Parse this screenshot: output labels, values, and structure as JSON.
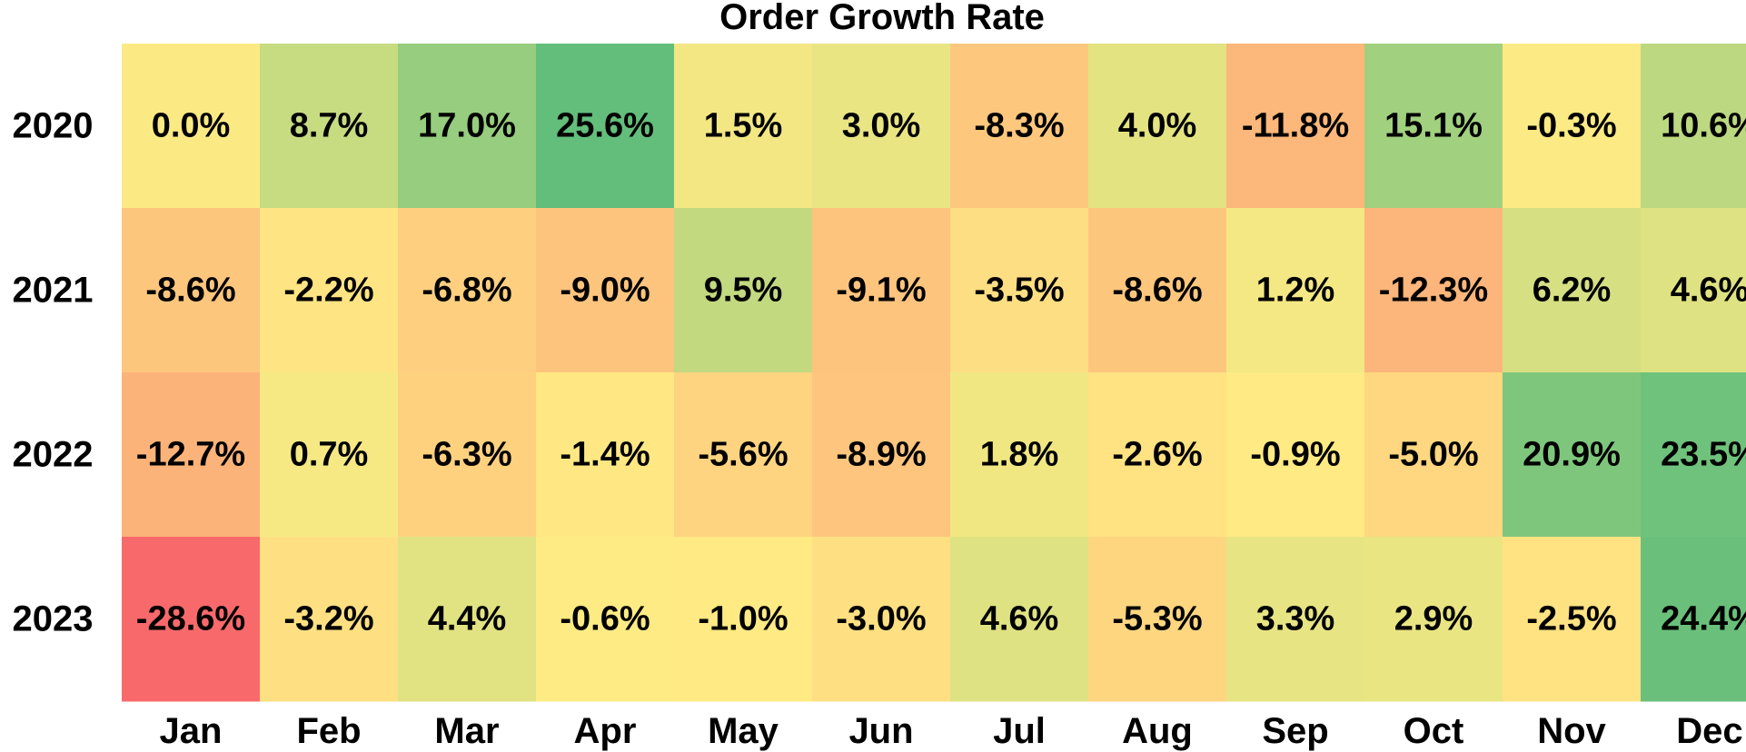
{
  "chart_data": {
    "type": "heatmap",
    "title": "Order Growth Rate",
    "x_categories": [
      "Jan",
      "Feb",
      "Mar",
      "Apr",
      "May",
      "Jun",
      "Jul",
      "Aug",
      "Sep",
      "Oct",
      "Nov",
      "Dec"
    ],
    "y_categories": [
      "2020",
      "2021",
      "2022",
      "2023"
    ],
    "values": [
      [
        0.0,
        8.7,
        17.0,
        25.6,
        1.5,
        3.0,
        -8.3,
        4.0,
        -11.8,
        15.1,
        -0.3,
        10.6
      ],
      [
        -8.6,
        -2.2,
        -6.8,
        -9.0,
        9.5,
        -9.1,
        -3.5,
        -8.6,
        1.2,
        -12.3,
        6.2,
        4.6
      ],
      [
        -12.7,
        0.7,
        -6.3,
        -1.4,
        -5.6,
        -8.9,
        1.8,
        -2.6,
        -0.9,
        -5.0,
        20.9,
        23.5
      ],
      [
        -28.6,
        -3.2,
        4.4,
        -0.6,
        -1.0,
        -3.0,
        4.6,
        -5.3,
        3.3,
        2.9,
        -2.5,
        24.4
      ]
    ],
    "value_format": "percent_1dp",
    "colormap": "RdYlGn",
    "color_stops": [
      "#f8696b",
      "#ffeb84",
      "#63be7b"
    ],
    "xlabel": "",
    "ylabel": "",
    "legend": "none",
    "grid": false
  }
}
